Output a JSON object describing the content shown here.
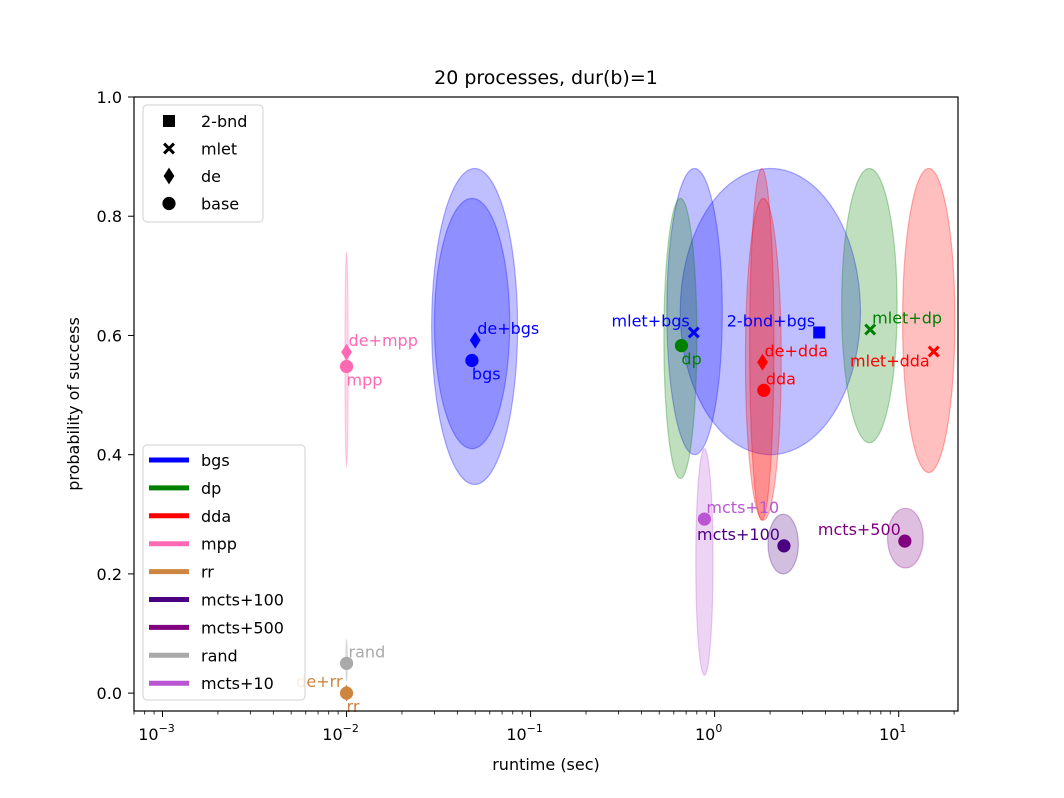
{
  "chart_data": {
    "type": "scatter",
    "title": "20 processes, dur(b)=1",
    "xlabel": "runtime (sec)",
    "ylabel": "probability of success",
    "xscale": "log",
    "xlim": [
      0.0007,
      21
    ],
    "ylim": [
      -0.03,
      1.0
    ],
    "x_ticks": [
      {
        "value": 0.001,
        "label": "10",
        "exp": "−3"
      },
      {
        "value": 0.01,
        "label": "10",
        "exp": "−2"
      },
      {
        "value": 0.1,
        "label": "10",
        "exp": "−1"
      },
      {
        "value": 1,
        "label": "10",
        "exp": "0"
      },
      {
        "value": 10,
        "label": "10",
        "exp": "1"
      }
    ],
    "y_ticks": [
      {
        "value": 0.0,
        "label": "0.0"
      },
      {
        "value": 0.2,
        "label": "0.2"
      },
      {
        "value": 0.4,
        "label": "0.4"
      },
      {
        "value": 0.6,
        "label": "0.6"
      },
      {
        "value": 0.8,
        "label": "0.8"
      },
      {
        "value": 1.0,
        "label": "1.0"
      }
    ],
    "grid": false,
    "marker_legend": {
      "placement": "upper-left",
      "entries": [
        {
          "marker": "square",
          "label": "2-bnd"
        },
        {
          "marker": "x",
          "label": "mlet"
        },
        {
          "marker": "diamond",
          "label": "de"
        },
        {
          "marker": "circle",
          "label": "base"
        }
      ]
    },
    "color_legend": {
      "placement": "lower-left",
      "entries": [
        {
          "label": "bgs",
          "color": "#0000ff"
        },
        {
          "label": "dp",
          "color": "#008000"
        },
        {
          "label": "dda",
          "color": "#ff0000"
        },
        {
          "label": "mpp",
          "color": "#ff69b4"
        },
        {
          "label": "rr",
          "color": "#cd853f"
        },
        {
          "label": "mcts+100",
          "color": "#4b0082"
        },
        {
          "label": "mcts+500",
          "color": "#800080"
        },
        {
          "label": "rand",
          "color": "#a9a9a9"
        },
        {
          "label": "mcts+10",
          "color": "#ba55d3"
        }
      ]
    },
    "points": [
      {
        "label": "bgs",
        "x": 0.048,
        "y": 0.558,
        "marker": "circle",
        "color": "#0000ff",
        "label_pos": "below-right",
        "spread": {
          "x_lo": 0.03,
          "x_hi": 0.077,
          "y_lo": 0.41,
          "y_hi": 0.83
        }
      },
      {
        "label": "de+bgs",
        "x": 0.05,
        "y": 0.592,
        "marker": "diamond",
        "color": "#0000ff",
        "label_pos": "above-right",
        "spread": {
          "x_lo": 0.029,
          "x_hi": 0.085,
          "y_lo": 0.35,
          "y_hi": 0.88
        }
      },
      {
        "label": "mlet+bgs",
        "x": 0.77,
        "y": 0.605,
        "marker": "x",
        "color": "#0000ff",
        "label_pos": "above-left",
        "spread": {
          "x_lo": 0.55,
          "x_hi": 1.1,
          "y_lo": 0.4,
          "y_hi": 0.88
        }
      },
      {
        "label": "2-bnd+bgs",
        "x": 3.7,
        "y": 0.605,
        "marker": "square",
        "color": "#0000ff",
        "label_pos": "above-left",
        "spread": {
          "x_lo": 0.65,
          "x_hi": 6.2,
          "y_lo": 0.4,
          "y_hi": 0.88
        }
      },
      {
        "label": "dp",
        "x": 0.66,
        "y": 0.583,
        "marker": "circle",
        "color": "#008000",
        "label_pos": "below-right",
        "spread": {
          "x_lo": 0.53,
          "x_hi": 0.8,
          "y_lo": 0.36,
          "y_hi": 0.83
        }
      },
      {
        "label": "mlet+dp",
        "x": 7.0,
        "y": 0.61,
        "marker": "x",
        "color": "#008000",
        "label_pos": "above-right",
        "spread": {
          "x_lo": 4.9,
          "x_hi": 9.8,
          "y_lo": 0.42,
          "y_hi": 0.88
        }
      },
      {
        "label": "dda",
        "x": 1.85,
        "y": 0.508,
        "marker": "circle",
        "color": "#ff0000",
        "label_pos": "above-right",
        "spread": {
          "x_lo": 1.47,
          "x_hi": 2.3,
          "y_lo": 0.29,
          "y_hi": 0.83
        }
      },
      {
        "label": "de+dda",
        "x": 1.82,
        "y": 0.555,
        "marker": "diamond",
        "color": "#ff0000",
        "label_pos": "above-right",
        "spread": {
          "x_lo": 1.55,
          "x_hi": 2.1,
          "y_lo": 0.29,
          "y_hi": 0.88
        }
      },
      {
        "label": "mlet+dda",
        "x": 15.5,
        "y": 0.573,
        "marker": "x",
        "color": "#ff0000",
        "label_pos": "below-left",
        "spread": {
          "x_lo": 10.5,
          "x_hi": 20.2,
          "y_lo": 0.37,
          "y_hi": 0.88
        }
      },
      {
        "label": "mpp",
        "x": 0.01,
        "y": 0.548,
        "marker": "circle",
        "color": "#ff69b4",
        "label_pos": "below-right",
        "spread": {
          "x_lo": 0.0098,
          "x_hi": 0.0102,
          "y_lo": 0.38,
          "y_hi": 0.74
        }
      },
      {
        "label": "de+mpp",
        "x": 0.01,
        "y": 0.572,
        "marker": "diamond",
        "color": "#ff69b4",
        "label_pos": "above-right"
      },
      {
        "label": "rr",
        "x": 0.01,
        "y": 0.0,
        "marker": "circle",
        "color": "#cd853f",
        "label_pos": "below-right"
      },
      {
        "label": "de+rr",
        "x": 0.01,
        "y": 0.0,
        "marker": "diamond",
        "color": "#cd853f",
        "label_pos": "above-left"
      },
      {
        "label": "rand",
        "x": 0.01,
        "y": 0.05,
        "marker": "circle",
        "color": "#a9a9a9",
        "label_pos": "above-right",
        "spread": {
          "x_lo": 0.0099,
          "x_hi": 0.0101,
          "y_lo": 0.02,
          "y_hi": 0.09
        }
      },
      {
        "label": "mcts+10",
        "x": 0.88,
        "y": 0.292,
        "marker": "circle",
        "color": "#ba55d3",
        "label_pos": "above-right",
        "spread": {
          "x_lo": 0.79,
          "x_hi": 0.98,
          "y_lo": 0.03,
          "y_hi": 0.41
        }
      },
      {
        "label": "mcts+100",
        "x": 2.38,
        "y": 0.247,
        "marker": "circle",
        "color": "#4b0082",
        "label_pos": "above-left",
        "spread": {
          "x_lo": 1.95,
          "x_hi": 2.85,
          "y_lo": 0.2,
          "y_hi": 0.3
        }
      },
      {
        "label": "mcts+500",
        "x": 10.8,
        "y": 0.255,
        "marker": "circle",
        "color": "#800080",
        "label_pos": "above-left",
        "spread": {
          "x_lo": 8.7,
          "x_hi": 13.6,
          "y_lo": 0.21,
          "y_hi": 0.31
        }
      }
    ]
  }
}
